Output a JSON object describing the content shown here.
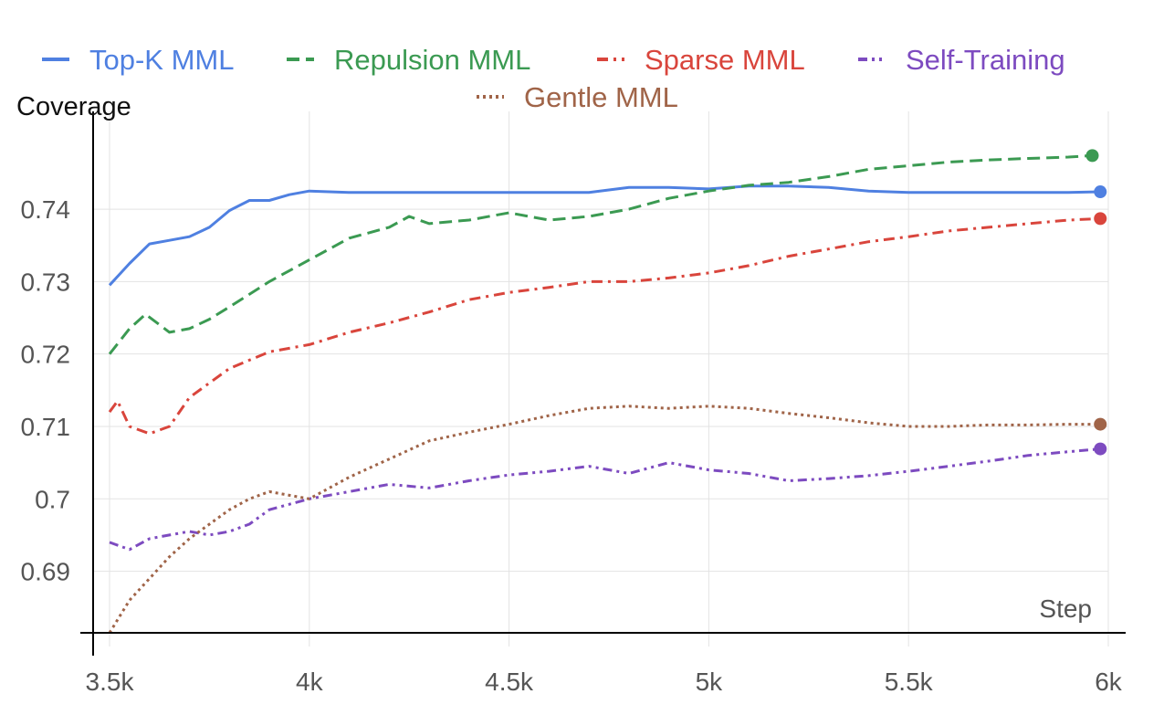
{
  "chart_data": {
    "type": "line",
    "ylabel": "Coverage",
    "xlabel": "Step",
    "xlim": [
      3500,
      6000
    ],
    "ylim": [
      0.6815,
      0.7535
    ],
    "grid": true,
    "legend_position": "top",
    "x_ticks": [
      {
        "value": 3500,
        "label": "3.5k"
      },
      {
        "value": 4000,
        "label": "4k"
      },
      {
        "value": 4500,
        "label": "4.5k"
      },
      {
        "value": 5000,
        "label": "5k"
      },
      {
        "value": 5500,
        "label": "5.5k"
      },
      {
        "value": 6000,
        "label": "6k"
      }
    ],
    "y_ticks": [
      {
        "value": 0.69,
        "label": "0.69"
      },
      {
        "value": 0.7,
        "label": "0.7"
      },
      {
        "value": 0.71,
        "label": "0.71"
      },
      {
        "value": 0.72,
        "label": "0.72"
      },
      {
        "value": 0.73,
        "label": "0.73"
      },
      {
        "value": 0.74,
        "label": "0.74"
      }
    ],
    "series": [
      {
        "name": "Top-K MML",
        "color": "#4f80e1",
        "dash": "solid",
        "x": [
          3500,
          3550,
          3600,
          3650,
          3700,
          3750,
          3800,
          3850,
          3900,
          3950,
          4000,
          4100,
          4200,
          4300,
          4400,
          4500,
          4600,
          4700,
          4800,
          4900,
          5000,
          5100,
          5200,
          5300,
          5400,
          5500,
          5600,
          5700,
          5800,
          5900,
          5980
        ],
        "values": [
          0.7295,
          0.7325,
          0.7352,
          0.7357,
          0.7362,
          0.7375,
          0.7398,
          0.7412,
          0.7412,
          0.742,
          0.7425,
          0.7423,
          0.7423,
          0.7423,
          0.7423,
          0.7423,
          0.7423,
          0.7423,
          0.743,
          0.743,
          0.7428,
          0.7432,
          0.7432,
          0.743,
          0.7425,
          0.7423,
          0.7423,
          0.7423,
          0.7423,
          0.7423,
          0.7424
        ]
      },
      {
        "name": "Repulsion MML",
        "color": "#3b9a52",
        "dash": "dashed",
        "x": [
          3500,
          3550,
          3590,
          3650,
          3700,
          3750,
          3800,
          3900,
          4000,
          4100,
          4200,
          4250,
          4300,
          4400,
          4500,
          4600,
          4700,
          4800,
          4900,
          5000,
          5100,
          5200,
          5300,
          5400,
          5500,
          5600,
          5700,
          5800,
          5900,
          5960
        ],
        "values": [
          0.72,
          0.7235,
          0.7255,
          0.723,
          0.7235,
          0.7248,
          0.7265,
          0.73,
          0.733,
          0.736,
          0.7375,
          0.739,
          0.738,
          0.7385,
          0.7395,
          0.7385,
          0.739,
          0.74,
          0.7415,
          0.7425,
          0.7433,
          0.7437,
          0.7445,
          0.7455,
          0.746,
          0.7465,
          0.7468,
          0.747,
          0.7472,
          0.7474
        ]
      },
      {
        "name": "Sparse MML",
        "color": "#d9453c",
        "dash": "dashdot",
        "x": [
          3500,
          3520,
          3550,
          3600,
          3650,
          3700,
          3750,
          3800,
          3900,
          4000,
          4100,
          4200,
          4300,
          4400,
          4500,
          4600,
          4700,
          4800,
          4900,
          5000,
          5100,
          5200,
          5300,
          5400,
          5500,
          5600,
          5700,
          5800,
          5900,
          5980
        ],
        "values": [
          0.712,
          0.7135,
          0.71,
          0.709,
          0.71,
          0.714,
          0.716,
          0.718,
          0.7203,
          0.7213,
          0.723,
          0.7243,
          0.7258,
          0.7275,
          0.7285,
          0.7292,
          0.73,
          0.73,
          0.7305,
          0.7312,
          0.7322,
          0.7335,
          0.7345,
          0.7355,
          0.7362,
          0.737,
          0.7375,
          0.738,
          0.7385,
          0.7387
        ]
      },
      {
        "name": "Self-Training",
        "color": "#7d4bc0",
        "dash": "dashdotdot",
        "x": [
          3500,
          3550,
          3600,
          3650,
          3700,
          3750,
          3800,
          3850,
          3900,
          4000,
          4100,
          4200,
          4300,
          4400,
          4500,
          4600,
          4700,
          4800,
          4900,
          5000,
          5100,
          5200,
          5300,
          5400,
          5500,
          5600,
          5700,
          5800,
          5900,
          5980
        ],
        "values": [
          0.694,
          0.693,
          0.6945,
          0.695,
          0.6955,
          0.695,
          0.6955,
          0.6965,
          0.6985,
          0.7,
          0.701,
          0.702,
          0.7015,
          0.7025,
          0.7033,
          0.7038,
          0.7045,
          0.7035,
          0.705,
          0.704,
          0.7035,
          0.7025,
          0.7028,
          0.7032,
          0.7038,
          0.7045,
          0.7052,
          0.706,
          0.7065,
          0.7069
        ]
      },
      {
        "name": "Gentle MML",
        "color": "#a06448",
        "dash": "dotted",
        "x": [
          3500,
          3550,
          3600,
          3650,
          3700,
          3750,
          3800,
          3850,
          3900,
          4000,
          4100,
          4200,
          4300,
          4400,
          4500,
          4600,
          4700,
          4800,
          4900,
          5000,
          5100,
          5200,
          5300,
          5400,
          5500,
          5600,
          5700,
          5800,
          5900,
          5980
        ],
        "values": [
          0.6815,
          0.686,
          0.689,
          0.692,
          0.6945,
          0.6965,
          0.6985,
          0.7,
          0.701,
          0.7,
          0.703,
          0.7055,
          0.708,
          0.7092,
          0.7103,
          0.7115,
          0.7125,
          0.7128,
          0.7125,
          0.7128,
          0.7125,
          0.7118,
          0.7112,
          0.7105,
          0.71,
          0.71,
          0.7102,
          0.7102,
          0.7103,
          0.7103
        ]
      }
    ]
  }
}
